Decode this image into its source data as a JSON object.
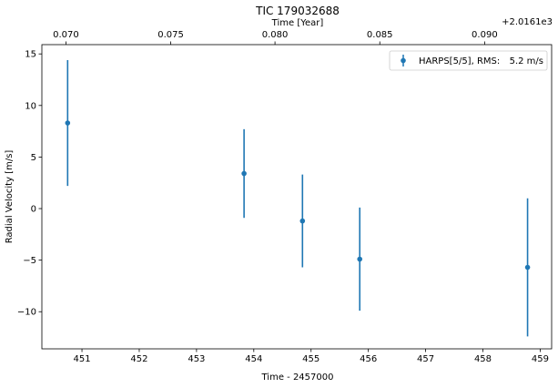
{
  "chart_data": {
    "type": "scatter",
    "title": "TIC 179032688",
    "xlabel": "Time - 2457000",
    "ylabel": "Radial Velocity [m/s]",
    "top_xlabel": "Time [Year]",
    "top_offset_label": "+2.0161e3",
    "xlim": [
      450.3,
      459.2
    ],
    "ylim": [
      -13.6,
      15.9
    ],
    "xticks": [
      451,
      452,
      453,
      454,
      455,
      456,
      457,
      458,
      459
    ],
    "yticks": [
      -10,
      -5,
      0,
      5,
      10,
      15
    ],
    "yticks_labels": [
      "−10",
      "−5",
      "0",
      "5",
      "10",
      "15"
    ],
    "top_ticks": [
      {
        "x": 450.72,
        "label": "0.070"
      },
      {
        "x": 452.55,
        "label": "0.075"
      },
      {
        "x": 454.37,
        "label": "0.080"
      },
      {
        "x": 456.2,
        "label": "0.085"
      },
      {
        "x": 458.03,
        "label": "0.090"
      }
    ],
    "legend": {
      "placement": "top-right",
      "label": "HARPS[5/5], RMS:",
      "value": "5.2 m/s"
    },
    "series": [
      {
        "name": "HARPS[5/5], RMS:  5.2 m/s",
        "color": "#1f77b4",
        "points": [
          {
            "x": 450.75,
            "y": 8.3,
            "err": 6.1
          },
          {
            "x": 453.83,
            "y": 3.4,
            "err": 4.3
          },
          {
            "x": 454.85,
            "y": -1.2,
            "err": 4.5
          },
          {
            "x": 455.85,
            "y": -4.9,
            "err": 5.0
          },
          {
            "x": 458.78,
            "y": -5.7,
            "err": 6.7
          }
        ]
      }
    ]
  }
}
